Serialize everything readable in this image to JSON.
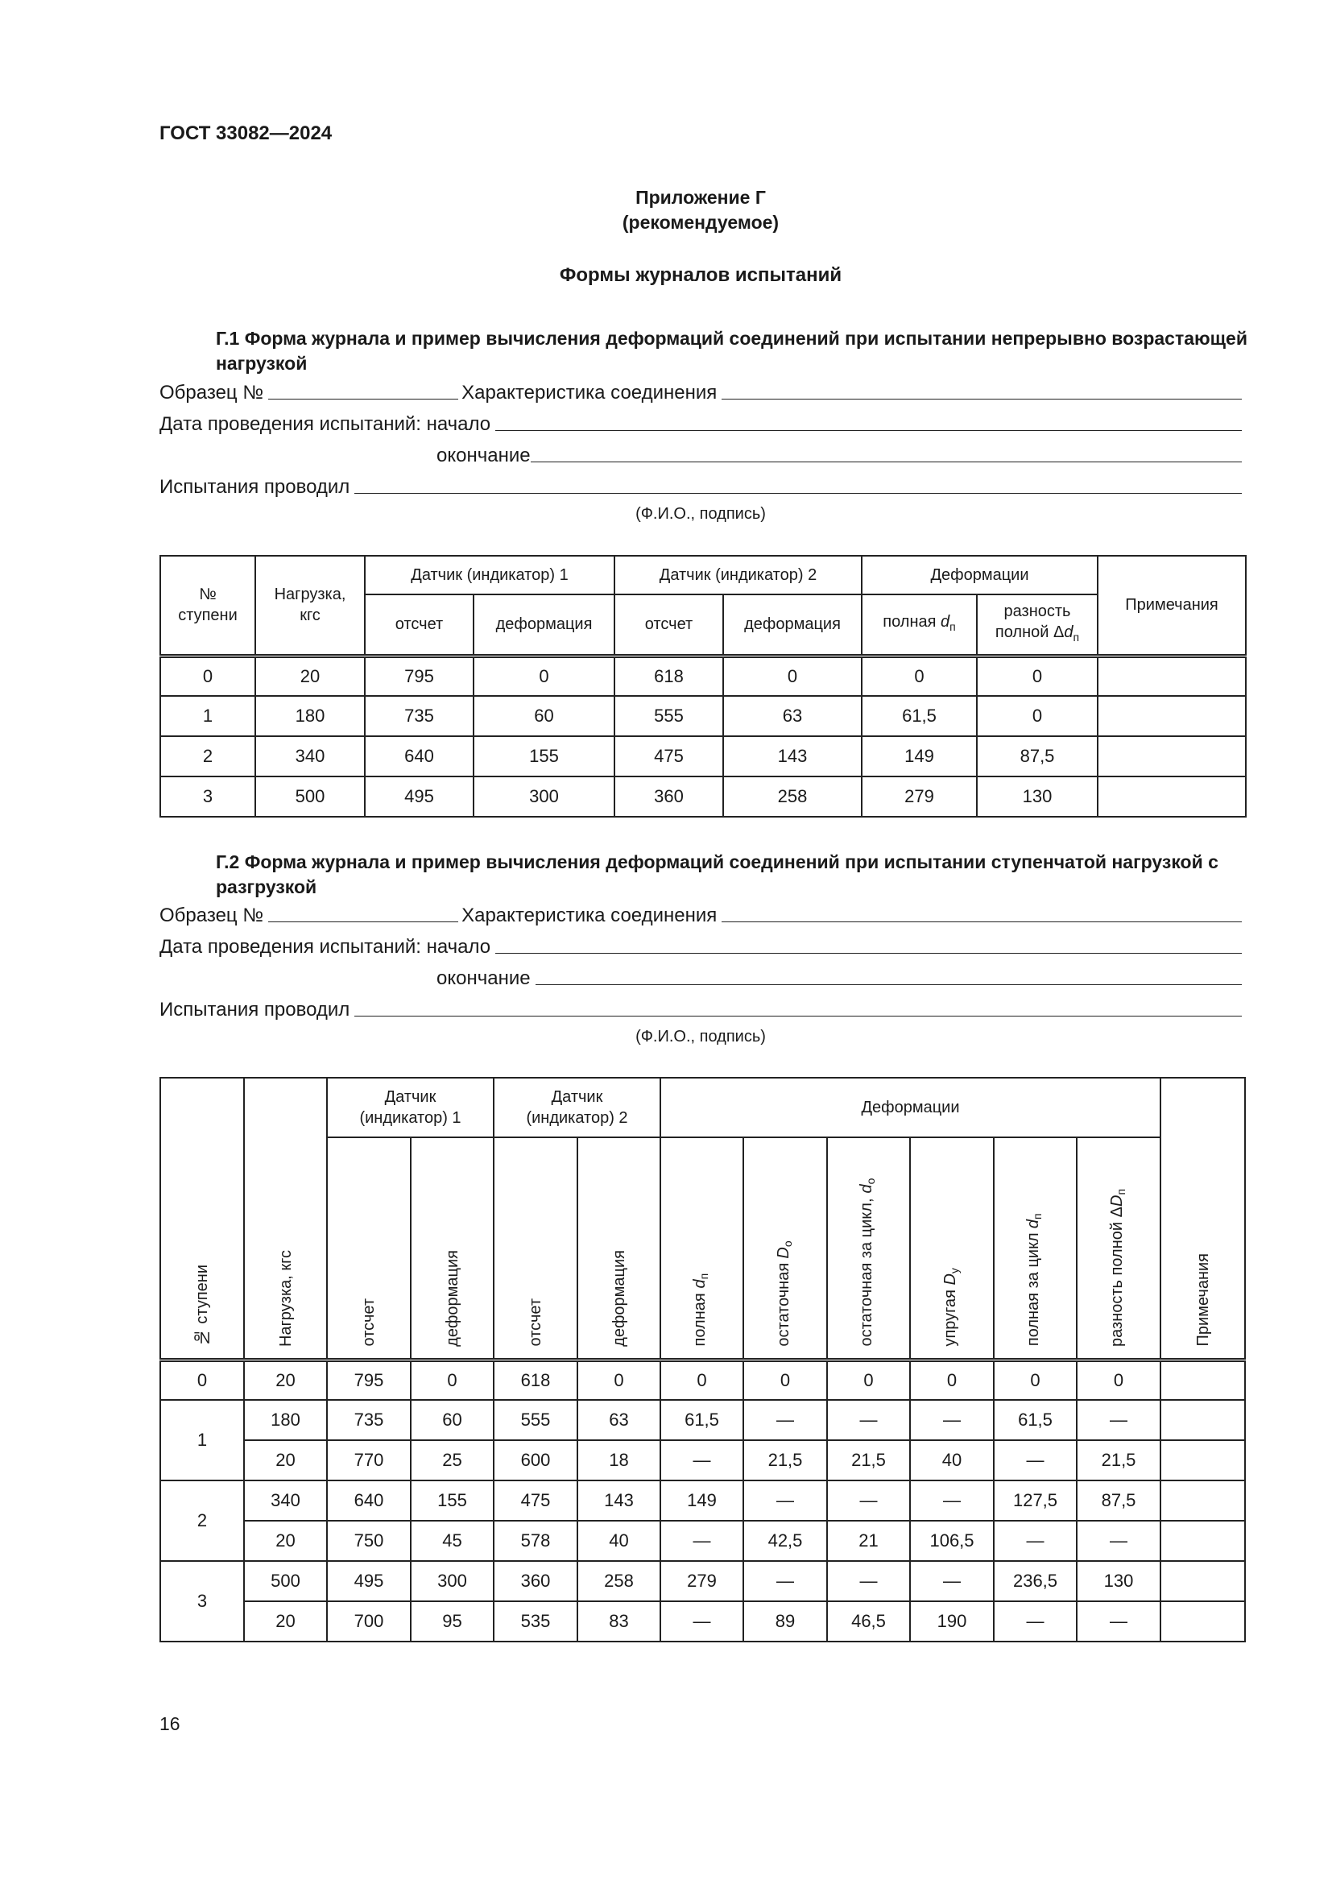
{
  "header": {
    "doc_code": "ГОСТ 33082—2024"
  },
  "appendix": {
    "title": "Приложение Г",
    "subtitle": "(рекомендуемое)",
    "heading": "Формы журналов испытаний"
  },
  "section1": {
    "title": "Г.1  Форма журнала и пример вычисления деформаций соединений при испытании непрерывно возрастающей нагрузкой",
    "sample_label": "Образец №",
    "connection_label": "Характеристика соединения",
    "date_start_label": "Дата проведения испытаний: начало",
    "date_end_label": "окончание",
    "tester_label": "Испытания проводил",
    "signature_caption": "(Ф.И.О., подпись)",
    "table": {
      "col_step": "№ ступени",
      "col_load": "Нагрузка, кгс",
      "group_sensor1": "Датчик (индикатор) 1",
      "group_sensor2": "Датчик (индикатор) 2",
      "group_deform": "Деформации",
      "col_notes": "Примечания",
      "sub_reading": "отсчет",
      "sub_deformation": "деформация",
      "sub_full": {
        "text": "полная ",
        "var": "d",
        "sub": "п"
      },
      "sub_diff": {
        "text": "разность полной Δ",
        "var": "d",
        "sub": "п"
      },
      "rows": [
        [
          "0",
          "20",
          "795",
          "0",
          "618",
          "0",
          "0",
          "0",
          ""
        ],
        [
          "1",
          "180",
          "735",
          "60",
          "555",
          "63",
          "61,5",
          "0",
          ""
        ],
        [
          "2",
          "340",
          "640",
          "155",
          "475",
          "143",
          "149",
          "87,5",
          ""
        ],
        [
          "3",
          "500",
          "495",
          "300",
          "360",
          "258",
          "279",
          "130",
          ""
        ]
      ]
    }
  },
  "section2": {
    "title": "Г.2  Форма журнала и пример вычисления деформаций соединений при испытании ступенчатой нагрузкой с разгрузкой",
    "sample_label": "Образец №",
    "connection_label": "Характеристика соединения",
    "date_start_label": "Дата проведения испытаний: начало",
    "date_end_label": "окончание",
    "tester_label": "Испытания проводил",
    "signature_caption": "(Ф.И.О., подпись)",
    "table": {
      "col_step": "№ ступени",
      "col_load": "Нагрузка, кгс",
      "group_sensor1": "Датчик (индикатор) 1",
      "group_sensor2": "Датчик (индикатор) 2",
      "group_deform": "Деформации",
      "col_notes": "Примечания",
      "sub_cols": [
        {
          "text": "отсчет"
        },
        {
          "text": "деформация"
        },
        {
          "text": "отсчет"
        },
        {
          "text": "деформация"
        },
        {
          "text": "полная ",
          "var": "d",
          "sub": "п"
        },
        {
          "text": "остаточная ",
          "var": "D",
          "sub": "о"
        },
        {
          "text": "остаточная за цикл, ",
          "var": "d",
          "sub": "о"
        },
        {
          "text": "упругая ",
          "var": "D",
          "sub": "у"
        },
        {
          "text": "полная за цикл ",
          "var": "d",
          "sub": "п"
        },
        {
          "text": "разность полной Δ",
          "var": "D",
          "sub": "п"
        }
      ],
      "groups": [
        {
          "step": "0",
          "rows": [
            [
              "20",
              "795",
              "0",
              "618",
              "0",
              "0",
              "0",
              "0",
              "0",
              "0",
              "0",
              ""
            ]
          ]
        },
        {
          "step": "1",
          "rows": [
            [
              "180",
              "735",
              "60",
              "555",
              "63",
              "61,5",
              "—",
              "—",
              "—",
              "61,5",
              "—",
              ""
            ],
            [
              "20",
              "770",
              "25",
              "600",
              "18",
              "—",
              "21,5",
              "21,5",
              "40",
              "—",
              "21,5",
              ""
            ]
          ]
        },
        {
          "step": "2",
          "rows": [
            [
              "340",
              "640",
              "155",
              "475",
              "143",
              "149",
              "—",
              "—",
              "—",
              "127,5",
              "87,5",
              ""
            ],
            [
              "20",
              "750",
              "45",
              "578",
              "40",
              "—",
              "42,5",
              "21",
              "106,5",
              "—",
              "—",
              ""
            ]
          ]
        },
        {
          "step": "3",
          "rows": [
            [
              "500",
              "495",
              "300",
              "360",
              "258",
              "279",
              "—",
              "—",
              "—",
              "236,5",
              "130",
              ""
            ],
            [
              "20",
              "700",
              "95",
              "535",
              "83",
              "—",
              "89",
              "46,5",
              "190",
              "—",
              "—",
              ""
            ]
          ]
        }
      ]
    }
  },
  "footer": {
    "page_number": "16"
  }
}
